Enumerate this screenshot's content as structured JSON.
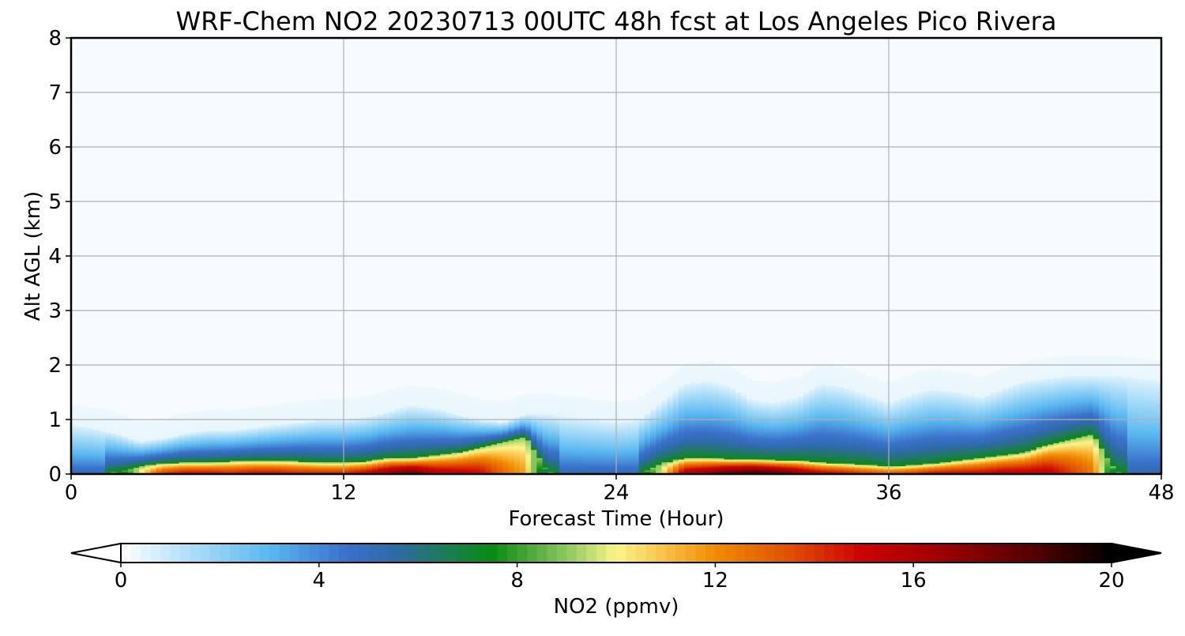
{
  "chart_data": {
    "type": "heatmap",
    "title": "WRF-Chem NO2  20230713 00UTC 48h fcst at Los Angeles Pico Rivera",
    "xlabel": "Forecast Time (Hour)",
    "ylabel": "Alt AGL (km)",
    "xlim": [
      0,
      48
    ],
    "ylim": [
      0,
      8
    ],
    "xticks": [
      0,
      12,
      24,
      36,
      48
    ],
    "yticks": [
      0,
      1,
      2,
      3,
      4,
      5,
      6,
      7,
      8
    ],
    "grid": true,
    "colorbar": {
      "label": "NO2  (ppmv)",
      "range": [
        0,
        20
      ],
      "ticks": [
        0,
        4,
        8,
        12,
        16,
        20
      ],
      "extend": "both",
      "stops": [
        {
          "v": 0,
          "c": "#ffffff"
        },
        {
          "v": 1.5,
          "c": "#a8dcf8"
        },
        {
          "v": 3,
          "c": "#5ab8f0"
        },
        {
          "v": 4.5,
          "c": "#3a72cc"
        },
        {
          "v": 5.5,
          "c": "#2f6aa8"
        },
        {
          "v": 6.5,
          "c": "#1e7a5a"
        },
        {
          "v": 7.5,
          "c": "#0a8a12"
        },
        {
          "v": 9,
          "c": "#8cc860"
        },
        {
          "v": 10,
          "c": "#fcf48a"
        },
        {
          "v": 11,
          "c": "#f8c048"
        },
        {
          "v": 12,
          "c": "#f08c00"
        },
        {
          "v": 13.5,
          "c": "#e05000"
        },
        {
          "v": 15,
          "c": "#cc0000"
        },
        {
          "v": 16.5,
          "c": "#a00000"
        },
        {
          "v": 18.5,
          "c": "#500000"
        },
        {
          "v": 20,
          "c": "#000000"
        }
      ]
    },
    "hours": [
      0,
      1,
      2,
      3,
      4,
      5,
      6,
      7,
      8,
      9,
      10,
      11,
      12,
      13,
      14,
      15,
      16,
      17,
      18,
      19,
      20,
      21,
      22,
      23,
      24,
      25,
      26,
      27,
      28,
      29,
      30,
      31,
      32,
      33,
      34,
      35,
      36,
      37,
      38,
      39,
      40,
      41,
      42,
      43,
      44,
      45,
      46,
      47,
      48
    ],
    "boundary_layer_top_km": [
      0.9,
      0.85,
      0.75,
      0.6,
      0.65,
      0.75,
      0.8,
      0.8,
      0.85,
      0.9,
      0.95,
      1.0,
      1.0,
      1.05,
      1.15,
      1.25,
      1.2,
      1.1,
      1.0,
      0.95,
      1.1,
      1.1,
      1.05,
      1.0,
      0.95,
      1.0,
      1.3,
      1.65,
      1.7,
      1.6,
      1.35,
      1.3,
      1.4,
      1.65,
      1.6,
      1.45,
      1.3,
      1.45,
      1.55,
      1.5,
      1.4,
      1.55,
      1.7,
      1.75,
      1.8,
      1.8,
      1.8,
      1.75,
      1.7
    ],
    "surface_peak_ppmv": [
      4.5,
      4.5,
      4.5,
      10,
      14,
      15,
      15,
      14.5,
      15,
      15,
      14.5,
      14.5,
      14.5,
      15.5,
      17,
      18,
      16,
      15.5,
      15,
      13,
      11.5,
      4.5,
      4.5,
      4.5,
      4.5,
      4.5,
      10,
      16,
      17,
      18.5,
      19,
      18.5,
      17,
      15.5,
      15,
      14,
      13.5,
      14,
      15,
      15,
      15,
      15.5,
      15.5,
      15.5,
      14,
      12.5,
      5,
      4.5,
      4.5
    ],
    "polluted_layer_top_km": [
      0.0,
      0.0,
      0.05,
      0.15,
      0.2,
      0.22,
      0.22,
      0.24,
      0.25,
      0.25,
      0.24,
      0.22,
      0.22,
      0.24,
      0.3,
      0.3,
      0.35,
      0.4,
      0.5,
      0.6,
      0.7,
      0.05,
      0.0,
      0.0,
      0.0,
      0.0,
      0.2,
      0.3,
      0.3,
      0.28,
      0.28,
      0.26,
      0.26,
      0.22,
      0.2,
      0.18,
      0.15,
      0.17,
      0.2,
      0.25,
      0.3,
      0.35,
      0.4,
      0.55,
      0.65,
      0.75,
      0.05,
      0.0,
      0.0
    ]
  }
}
